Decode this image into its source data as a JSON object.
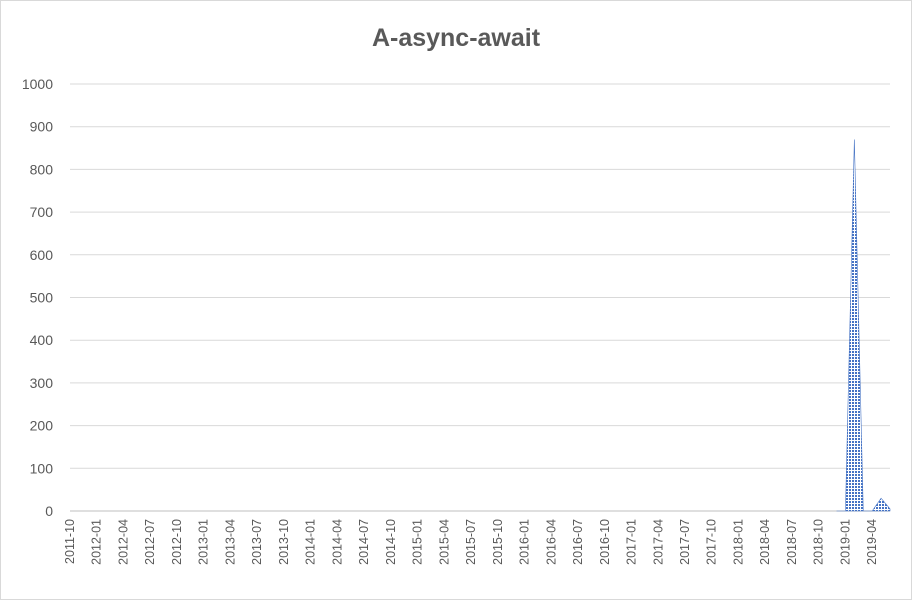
{
  "chart_data": {
    "type": "area",
    "title": "A-async-await",
    "xlabel": "",
    "ylabel": "",
    "ylim": [
      0,
      1000
    ],
    "y_ticks": [
      0,
      100,
      200,
      300,
      400,
      500,
      600,
      700,
      800,
      900,
      1000
    ],
    "x_range": [
      "2011-10",
      "2019-06"
    ],
    "x_ticks": [
      "2011-10",
      "2012-01",
      "2012-04",
      "2012-07",
      "2012-10",
      "2013-01",
      "2013-04",
      "2013-07",
      "2013-10",
      "2014-01",
      "2014-04",
      "2014-07",
      "2014-10",
      "2015-01",
      "2015-04",
      "2015-07",
      "2015-10",
      "2016-01",
      "2016-04",
      "2016-07",
      "2016-10",
      "2017-01",
      "2017-04",
      "2017-07",
      "2017-10",
      "2018-01",
      "2018-04",
      "2018-07",
      "2018-10",
      "2019-01",
      "2019-04"
    ],
    "grid": true,
    "legend": "none",
    "series_color": "#4472c4",
    "series": [
      {
        "x": [
          "2018-12",
          "2019-01",
          "2019-02",
          "2019-03",
          "2019-04",
          "2019-05",
          "2019-06"
        ],
        "values": [
          0,
          0,
          870,
          0,
          0,
          30,
          5
        ]
      }
    ]
  }
}
